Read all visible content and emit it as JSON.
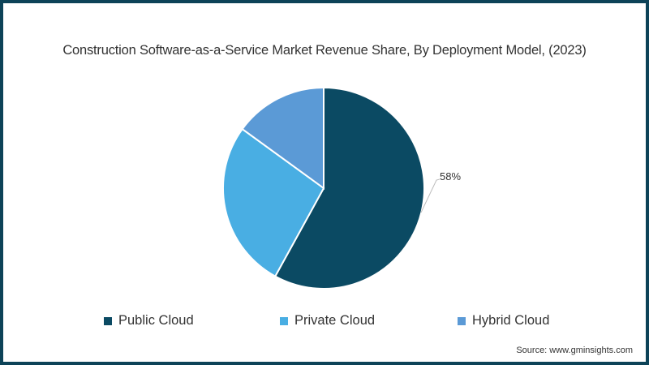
{
  "title": "Construction Software-as-a-Service Market Revenue Share, By Deployment Model, (2023)",
  "source": "Source: www.gminsights.com",
  "legend": [
    {
      "label": "Public Cloud",
      "color": "#0b4a63"
    },
    {
      "label": "Private Cloud",
      "color": "#49aee3"
    },
    {
      "label": "Hybrid Cloud",
      "color": "#5b9ad6"
    }
  ],
  "labels": {
    "public_cloud_pct": "58%"
  },
  "colors": {
    "frame": "#0d4358",
    "text": "#333333",
    "leader_line": "#bbbbbb"
  },
  "chart_data": {
    "type": "pie",
    "title": "Construction Software-as-a-Service Market Revenue Share, By Deployment Model, (2023)",
    "categories": [
      "Public Cloud",
      "Private Cloud",
      "Hybrid Cloud"
    ],
    "values": [
      58,
      27,
      15
    ],
    "unit": "%",
    "data_labels": {
      "Public Cloud": "58%"
    },
    "colors": [
      "#0b4a63",
      "#49aee3",
      "#5b9ad6"
    ],
    "start_angle_deg": 0,
    "direction": "clockwise",
    "legend_position": "bottom",
    "annotations": [
      "Source: www.gminsights.com"
    ]
  }
}
